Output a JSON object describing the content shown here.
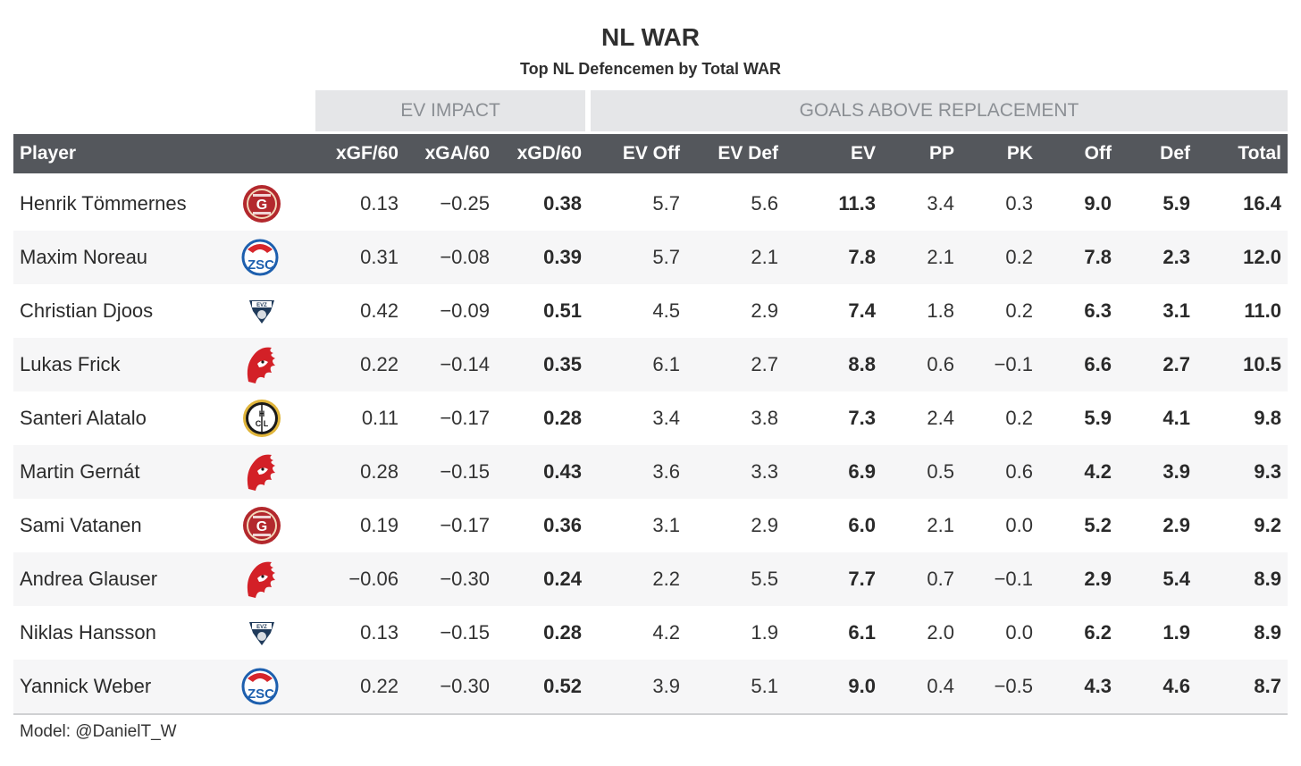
{
  "title": "NL WAR",
  "subtitle": "Top NL Defencemen by Total WAR",
  "spanners": {
    "ev_impact": "EV IMPACT",
    "gar": "GOALS ABOVE REPLACEMENT"
  },
  "columns": {
    "player": "Player",
    "xgf60": "xGF/60",
    "xga60": "xGA/60",
    "xgd60": "xGD/60",
    "ev_off": "EV Off",
    "ev_def": "EV Def",
    "ev": "EV",
    "pp": "PP",
    "pk": "PK",
    "off": "Off",
    "def": "Def",
    "total": "Total"
  },
  "colors": {
    "header_bg": "#54575c",
    "spanner_bg": "#e5e6e8",
    "row_alt_bg": "#f6f6f7",
    "geneve_red": "#b3282d",
    "zsc_blue": "#1d5fae",
    "zsc_red": "#d7262b",
    "evz_navy": "#1f3a5a",
    "lausanne_red": "#d32027",
    "lugano_black": "#1a1a1a",
    "lugano_gold": "#e0b53b"
  },
  "chart_data": {
    "type": "table",
    "title": "NL WAR",
    "subtitle": "Top NL Defencemen by Total WAR",
    "rows": [
      {
        "player": "Henrik Tömmernes",
        "team_logo": "geneve-servette-logo",
        "xgf60": "0.13",
        "xga60": "−0.25",
        "xgd60": "0.38",
        "ev_off": "5.7",
        "ev_def": "5.6",
        "ev": "11.3",
        "pp": "3.4",
        "pk": "0.3",
        "off": "9.0",
        "def": "5.9",
        "total": "16.4"
      },
      {
        "player": "Maxim Noreau",
        "team_logo": "zsc-lions-logo",
        "xgf60": "0.31",
        "xga60": "−0.08",
        "xgd60": "0.39",
        "ev_off": "5.7",
        "ev_def": "2.1",
        "ev": "7.8",
        "pp": "2.1",
        "pk": "0.2",
        "off": "7.8",
        "def": "2.3",
        "total": "12.0"
      },
      {
        "player": "Christian Djoos",
        "team_logo": "evz-logo",
        "xgf60": "0.42",
        "xga60": "−0.09",
        "xgd60": "0.51",
        "ev_off": "4.5",
        "ev_def": "2.9",
        "ev": "7.4",
        "pp": "1.8",
        "pk": "0.2",
        "off": "6.3",
        "def": "3.1",
        "total": "11.0"
      },
      {
        "player": "Lukas Frick",
        "team_logo": "lausanne-hc-logo",
        "xgf60": "0.22",
        "xga60": "−0.14",
        "xgd60": "0.35",
        "ev_off": "6.1",
        "ev_def": "2.7",
        "ev": "8.8",
        "pp": "0.6",
        "pk": "−0.1",
        "off": "6.6",
        "def": "2.7",
        "total": "10.5"
      },
      {
        "player": "Santeri Alatalo",
        "team_logo": "hc-lugano-logo",
        "xgf60": "0.11",
        "xga60": "−0.17",
        "xgd60": "0.28",
        "ev_off": "3.4",
        "ev_def": "3.8",
        "ev": "7.3",
        "pp": "2.4",
        "pk": "0.2",
        "off": "5.9",
        "def": "4.1",
        "total": "9.8"
      },
      {
        "player": "Martin Gernát",
        "team_logo": "lausanne-hc-logo",
        "xgf60": "0.28",
        "xga60": "−0.15",
        "xgd60": "0.43",
        "ev_off": "3.6",
        "ev_def": "3.3",
        "ev": "6.9",
        "pp": "0.5",
        "pk": "0.6",
        "off": "4.2",
        "def": "3.9",
        "total": "9.3"
      },
      {
        "player": "Sami Vatanen",
        "team_logo": "geneve-servette-logo",
        "xgf60": "0.19",
        "xga60": "−0.17",
        "xgd60": "0.36",
        "ev_off": "3.1",
        "ev_def": "2.9",
        "ev": "6.0",
        "pp": "2.1",
        "pk": "0.0",
        "off": "5.2",
        "def": "2.9",
        "total": "9.2"
      },
      {
        "player": "Andrea Glauser",
        "team_logo": "lausanne-hc-logo",
        "xgf60": "−0.06",
        "xga60": "−0.30",
        "xgd60": "0.24",
        "ev_off": "2.2",
        "ev_def": "5.5",
        "ev": "7.7",
        "pp": "0.7",
        "pk": "−0.1",
        "off": "2.9",
        "def": "5.4",
        "total": "8.9"
      },
      {
        "player": "Niklas Hansson",
        "team_logo": "evz-logo",
        "xgf60": "0.13",
        "xga60": "−0.15",
        "xgd60": "0.28",
        "ev_off": "4.2",
        "ev_def": "1.9",
        "ev": "6.1",
        "pp": "2.0",
        "pk": "0.0",
        "off": "6.2",
        "def": "1.9",
        "total": "8.9"
      },
      {
        "player": "Yannick Weber",
        "team_logo": "zsc-lions-logo",
        "xgf60": "0.22",
        "xga60": "−0.30",
        "xgd60": "0.52",
        "ev_off": "3.9",
        "ev_def": "5.1",
        "ev": "9.0",
        "pp": "0.4",
        "pk": "−0.5",
        "off": "4.3",
        "def": "4.6",
        "total": "8.7"
      }
    ]
  },
  "source_note": "Model: @DanielT_W"
}
